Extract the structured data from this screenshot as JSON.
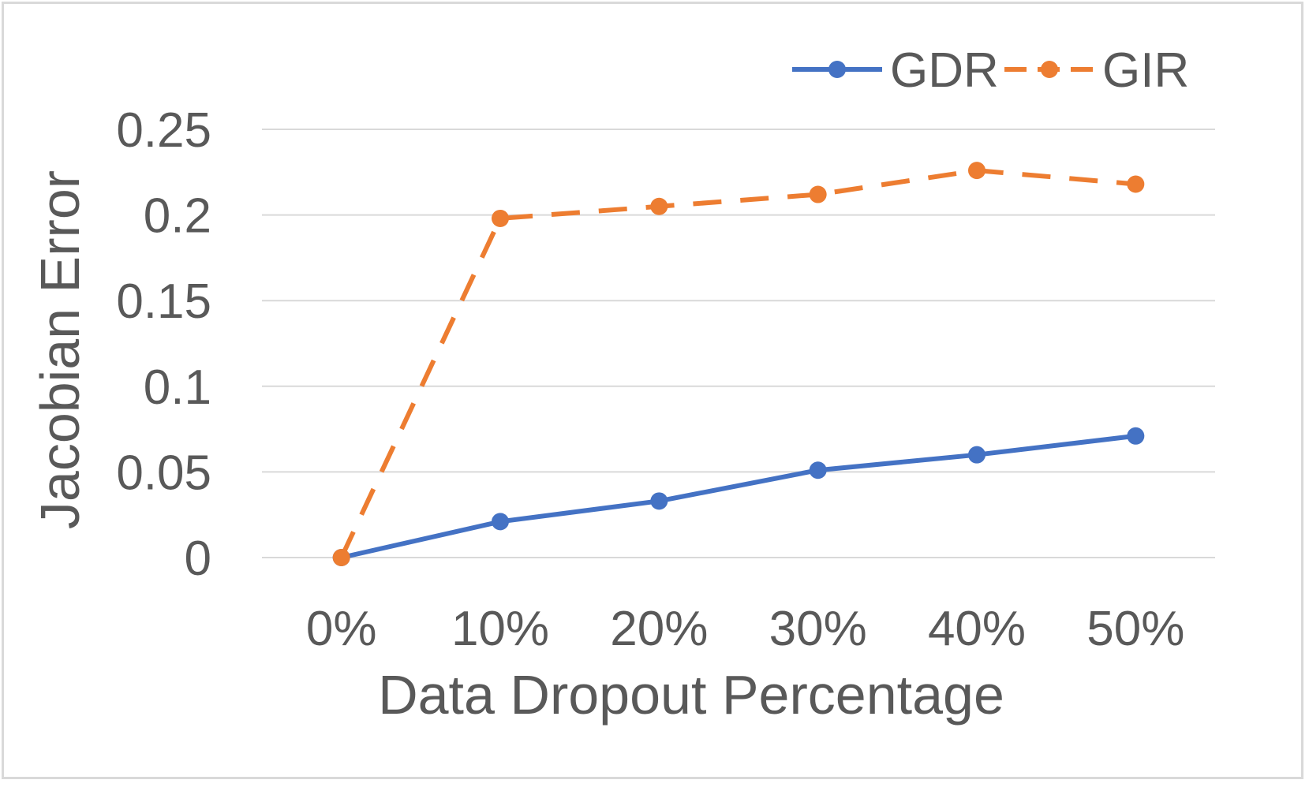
{
  "chart_data": {
    "type": "line",
    "title": "",
    "xlabel": "Data Dropout Percentage",
    "ylabel": "Jacobian Error",
    "categories": [
      "0%",
      "10%",
      "20%",
      "30%",
      "40%",
      "50%"
    ],
    "yticks": [
      "0",
      "0.05",
      "0.1",
      "0.15",
      "0.2",
      "0.25"
    ],
    "ylim": [
      0,
      0.25
    ],
    "grid": true,
    "legend_position": "top-right",
    "series": [
      {
        "name": "GDR",
        "color": "#4472C4",
        "dash": "solid",
        "values": [
          0.0,
          0.021,
          0.033,
          0.051,
          0.06,
          0.071
        ]
      },
      {
        "name": "GIR",
        "color": "#ED7D31",
        "dash": "dashed",
        "values": [
          0.0,
          0.198,
          0.205,
          0.212,
          0.226,
          0.218
        ]
      }
    ]
  }
}
